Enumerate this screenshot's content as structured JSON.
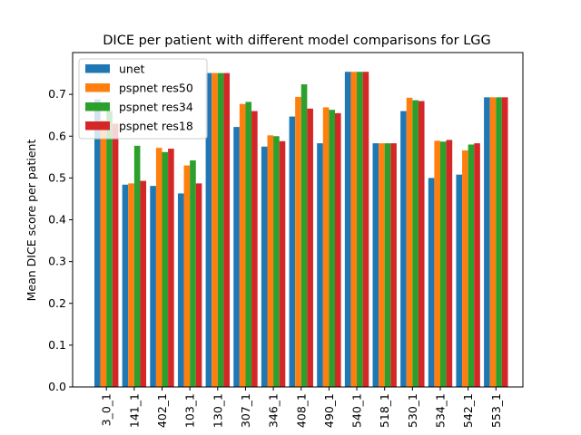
{
  "chart_data": {
    "type": "bar",
    "title": "DICE per patient with different model comparisons for LGG",
    "xlabel": "",
    "ylabel": "Mean DICE score per patient",
    "ylim": [
      0,
      0.8
    ],
    "yticks": [
      0.0,
      0.1,
      0.2,
      0.3,
      0.4,
      0.5,
      0.6,
      0.7
    ],
    "ytick_labels": [
      "0.0",
      "0.1",
      "0.2",
      "0.3",
      "0.4",
      "0.5",
      "0.6",
      "0.7"
    ],
    "categories": [
      "3_0_1",
      "141_1",
      "402_1",
      "103_1",
      "130_1",
      "307_1",
      "346_1",
      "408_1",
      "490_1",
      "540_1",
      "518_1",
      "530_1",
      "534_1",
      "542_1",
      "553_1"
    ],
    "legend_position": "top-left",
    "grid": false,
    "series": [
      {
        "name": "unet",
        "color": "#1f77b4",
        "values": [
          0.688,
          0.484,
          0.481,
          0.463,
          0.751,
          0.622,
          0.575,
          0.647,
          0.583,
          0.754,
          0.583,
          0.66,
          0.5,
          0.508,
          0.693
        ]
      },
      {
        "name": "pspnet res50",
        "color": "#ff7f0e",
        "values": [
          0.638,
          0.487,
          0.572,
          0.53,
          0.751,
          0.677,
          0.602,
          0.694,
          0.669,
          0.754,
          0.583,
          0.692,
          0.589,
          0.566,
          0.693
        ]
      },
      {
        "name": "pspnet res34",
        "color": "#2ca02c",
        "values": [
          0.66,
          0.577,
          0.562,
          0.542,
          0.751,
          0.682,
          0.6,
          0.724,
          0.663,
          0.754,
          0.583,
          0.686,
          0.587,
          0.58,
          0.693
        ]
      },
      {
        "name": "pspnet res18",
        "color": "#d62728",
        "values": [
          0.63,
          0.493,
          0.57,
          0.487,
          0.751,
          0.66,
          0.588,
          0.666,
          0.655,
          0.754,
          0.583,
          0.684,
          0.591,
          0.583,
          0.693
        ]
      }
    ]
  }
}
